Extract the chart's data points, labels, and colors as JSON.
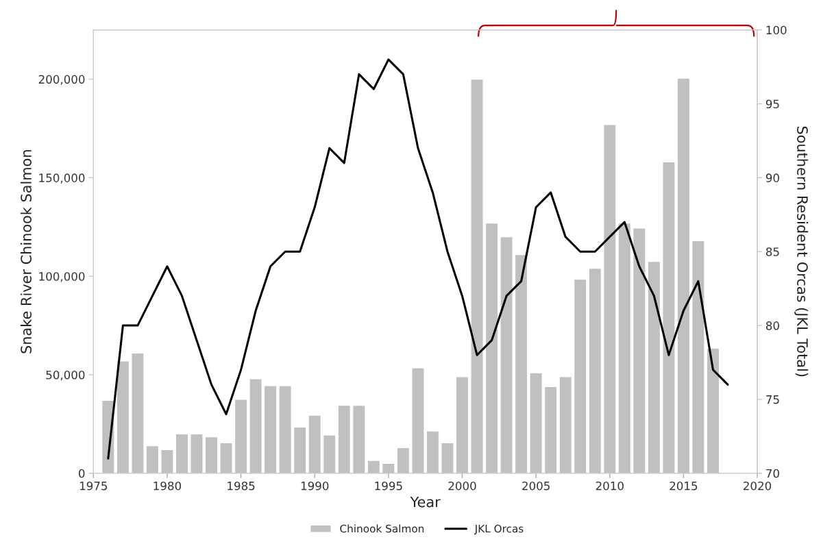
{
  "chart_data": {
    "type": "bar",
    "xlabel": "Year",
    "ylabel": "Snake River Chinook Salmon",
    "y2label": "Southern Resident Orcas (JKL Total)",
    "series": [
      {
        "name": "Chinook Salmon",
        "color": "#c0c0c0",
        "x": [
          "1976",
          "1977",
          "1978",
          "1979",
          "1980",
          "1981",
          "1982",
          "1983",
          "1984",
          "1985",
          "1986",
          "1987",
          "1988",
          "1989",
          "1990",
          "1991",
          "1992",
          "1993",
          "1994",
          "1995",
          "1996",
          "1997",
          "1998",
          "1999",
          "2000",
          "2001",
          "2002",
          "2003",
          "2004",
          "2005",
          "2006",
          "2007",
          "2008",
          "2009",
          "2010",
          "2011",
          "2012",
          "2013",
          "2014",
          "2015",
          "2016",
          "2017"
        ],
        "values": [
          37000,
          57000,
          61000,
          14000,
          12000,
          20000,
          20000,
          18500,
          15500,
          37500,
          48000,
          44500,
          44500,
          23500,
          29500,
          19500,
          34500,
          34500,
          6500,
          5000,
          13000,
          53500,
          21500,
          15500,
          49000,
          200000,
          127000,
          120000,
          111000,
          51000,
          44000,
          49000,
          98500,
          104000,
          177000,
          127000,
          124500,
          107500,
          158000,
          200500,
          118000,
          63500
        ]
      },
      {
        "name": "JKL Orcas",
        "type": "line",
        "axis": "y2",
        "color": "#000000",
        "x": [
          "1976",
          "1977",
          "1978",
          "1979",
          "1980",
          "1981",
          "1982",
          "1983",
          "1984",
          "1985",
          "1986",
          "1987",
          "1988",
          "1989",
          "1990",
          "1991",
          "1992",
          "1993",
          "1994",
          "1995",
          "1996",
          "1997",
          "1998",
          "1999",
          "2000",
          "2001",
          "2002",
          "2003",
          "2004",
          "2005",
          "2006",
          "2007",
          "2008",
          "2009",
          "2010",
          "2011",
          "2012",
          "2013",
          "2014",
          "2015",
          "2016",
          "2017",
          "2018"
        ],
        "values": [
          71,
          80,
          80,
          82,
          84,
          82,
          79,
          76,
          74,
          77,
          81,
          84,
          85,
          85,
          88,
          92,
          91,
          97,
          96,
          98,
          97,
          92,
          89,
          85,
          82,
          78,
          79,
          82,
          83,
          88,
          89,
          86,
          85,
          85,
          86,
          87,
          84,
          82,
          78,
          81,
          83,
          77,
          76
        ]
      }
    ],
    "xlim": [
      "1975",
      "2020"
    ],
    "xticks": [
      "1975",
      "1980",
      "1985",
      "1990",
      "1995",
      "2000",
      "2005",
      "2010",
      "2015",
      "2020"
    ],
    "ylim": [
      0,
      225000
    ],
    "yticks": [
      {
        "value": 0,
        "label": "0"
      },
      {
        "value": 50000,
        "label": "50,000"
      },
      {
        "value": 100000,
        "label": "100,000"
      },
      {
        "value": 150000,
        "label": "150,000"
      },
      {
        "value": 200000,
        "label": "200,000"
      }
    ],
    "y2lim": [
      70,
      100
    ],
    "y2ticks": [
      70,
      75,
      80,
      85,
      90,
      95,
      100
    ],
    "grid": false,
    "legend": "bottom",
    "line_style": "solid",
    "marker": "none"
  }
}
